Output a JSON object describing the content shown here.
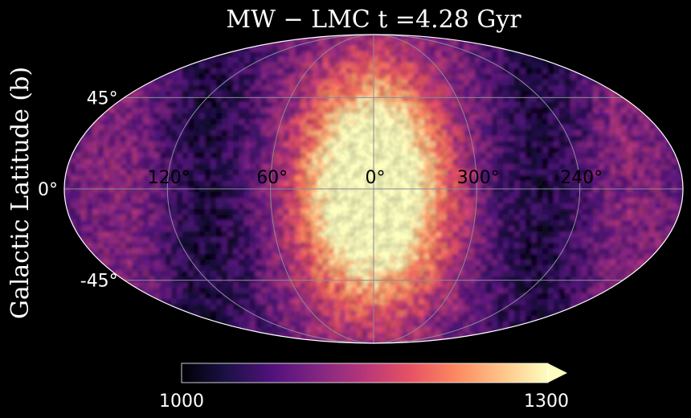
{
  "chart_data": {
    "type": "heatmap",
    "projection": "mollweide (aitoff-like)",
    "title": "MW − LMC t =4.28 Gyr",
    "ylabel": "Galactic Latitude (b)",
    "xlabel": "",
    "longitude_ticks": [
      "120°",
      "60°",
      "0°",
      "300°",
      "240°"
    ],
    "longitude_values": [
      120,
      60,
      0,
      300,
      240
    ],
    "latitude_ticks": [
      "45°",
      "0°",
      "-45°"
    ],
    "latitude_values": [
      45,
      0,
      -45
    ],
    "grid": true,
    "colormap": "magma",
    "colorbar": {
      "min": 1000,
      "max": 1300,
      "min_label": "1000",
      "max_label": "1300",
      "extend": "max",
      "orientation": "horizontal",
      "position": "bottom"
    },
    "description_values": {
      "center_l0_b0": 1300,
      "mid_disk_l60_b0": 1180,
      "outer_l120_b0": 1060,
      "anticenter_l180_b0": 1120,
      "high_lat_b60": 1130
    }
  },
  "colors": {
    "background": "#000000",
    "grid": "#8a8a9a",
    "outline": "#ffffff",
    "text": "#ffffff",
    "tick_text": "#000000",
    "magma_stops": [
      "#000004",
      "#1d1147",
      "#51127c",
      "#832681",
      "#b73779",
      "#e75263",
      "#fc8961",
      "#fec488",
      "#fcfdbf"
    ]
  }
}
